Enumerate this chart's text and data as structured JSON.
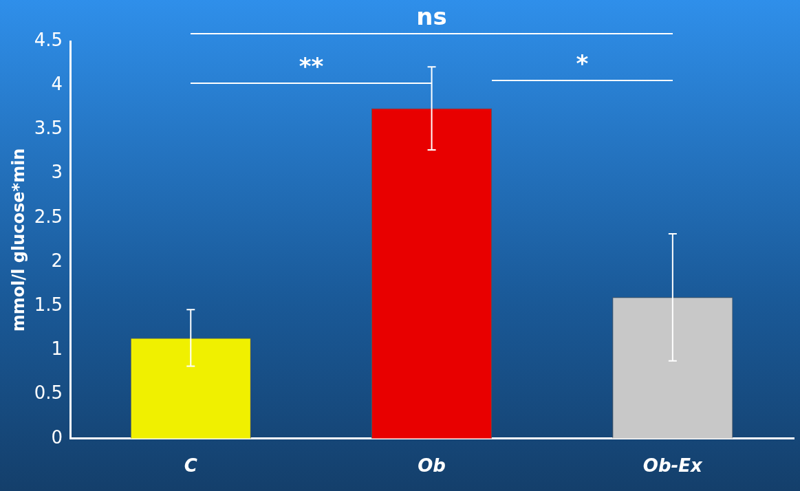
{
  "chart_data": {
    "type": "bar",
    "ylabel": "mmol/l glucose*min",
    "categories": [
      "C",
      "Ob",
      "Ob-Ex"
    ],
    "values": [
      1.14,
      3.74,
      1.6
    ],
    "colors": [
      "#f0f000",
      "#e80000",
      "#c8c8c8"
    ],
    "errors": [
      0.32,
      0.47,
      0.72
    ],
    "ylim": [
      0,
      4.5
    ],
    "yticks": [
      0,
      0.5,
      1,
      1.5,
      2,
      2.5,
      3,
      3.5,
      4,
      4.5
    ],
    "grid": false,
    "legend": false,
    "annotations": [
      "ns",
      "**",
      "*"
    ]
  }
}
